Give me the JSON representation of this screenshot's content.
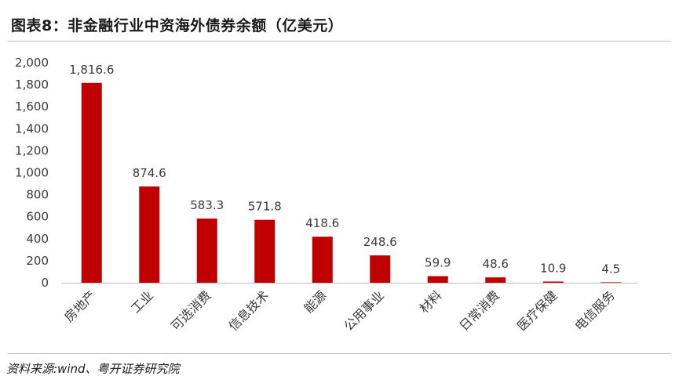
{
  "title": "图表8：非金融行业中资海外债券余额（亿美元）",
  "source": "资料来源:wind、粤开证券研究院",
  "chart_data": {
    "type": "bar",
    "categories": [
      "房地产",
      "工业",
      "可选消费",
      "信息技术",
      "能源",
      "公用事业",
      "材料",
      "日常消费",
      "医疗保健",
      "电信服务"
    ],
    "values": [
      1816.6,
      874.6,
      583.3,
      571.8,
      418.6,
      248.6,
      59.9,
      48.6,
      10.9,
      4.5
    ],
    "data_labels": [
      "1,816.6",
      "874.6",
      "583.3",
      "571.8",
      "418.6",
      "248.6",
      "59.9",
      "48.6",
      "10.9",
      "4.5"
    ],
    "yticks": [
      0,
      200,
      400,
      600,
      800,
      1000,
      1200,
      1400,
      1600,
      1800,
      2000
    ],
    "ytick_labels": [
      "0",
      "200",
      "400",
      "600",
      "800",
      "1,000",
      "1,200",
      "1,400",
      "1,600",
      "1,800",
      "2,000"
    ],
    "ylim": [
      0,
      2000
    ],
    "bar_color": "#c00000",
    "grid": false,
    "legend": "none",
    "xlabel": "",
    "ylabel": ""
  }
}
